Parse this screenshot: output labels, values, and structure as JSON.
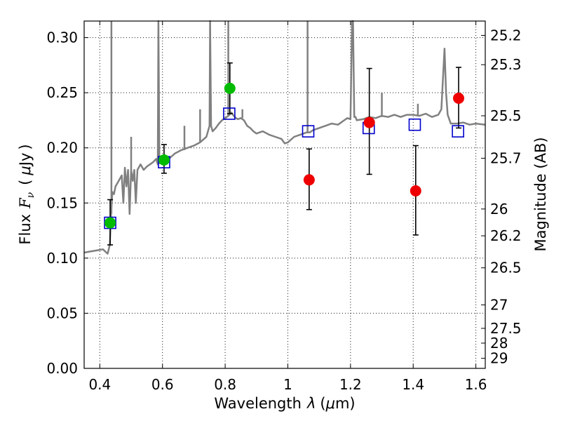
{
  "chart_data": {
    "type": "scatter",
    "x_label": "Wavelength",
    "x_symbol": "λ",
    "x_unit_prefix": "μ",
    "x_unit": "m",
    "y_label": "Flux",
    "y_symbol": "F",
    "y_symbol_sub": "ν",
    "y_unit_prefix": "μ",
    "y_unit": "Jy",
    "y2_label": "Magnitude (AB)",
    "xlim": [
      0.35,
      1.63
    ],
    "ylim": [
      0.0,
      0.315
    ],
    "x_ticks": [
      0.4,
      0.6,
      0.8,
      1.0,
      1.2,
      1.4,
      1.6
    ],
    "x_tick_labels": [
      "0.4",
      "0.6",
      "0.8",
      "1",
      "1.2",
      "1.4",
      "1.6"
    ],
    "y_ticks": [
      0.0,
      0.05,
      0.1,
      0.15,
      0.2,
      0.25,
      0.3
    ],
    "y_tick_labels": [
      "0.00",
      "0.05",
      "0.10",
      "0.15",
      "0.20",
      "0.25",
      "0.30"
    ],
    "y2_ticks": [
      {
        "label": "25.2",
        "mag": 25.2
      },
      {
        "label": "25.3",
        "mag": 25.3
      },
      {
        "label": "25.5",
        "mag": 25.5
      },
      {
        "label": "25.7",
        "mag": 25.7
      },
      {
        "label": "26",
        "mag": 26.0
      },
      {
        "label": "26.2",
        "mag": 26.2
      },
      {
        "label": "26.5",
        "mag": 26.5
      },
      {
        "label": "27",
        "mag": 27.0
      },
      {
        "label": "27.5",
        "mag": 27.5
      },
      {
        "label": "28",
        "mag": 28.0
      },
      {
        "label": "29",
        "mag": 29.0
      }
    ],
    "grid": true,
    "colors": {
      "template": "#808080",
      "green": "#00bb00",
      "red": "#ee0000",
      "square": "#0000cc",
      "errorbar": "#000000"
    },
    "template_spectrum": {
      "x": [
        0.35,
        0.37,
        0.39,
        0.41,
        0.425,
        0.432,
        0.436,
        0.44,
        0.445,
        0.45,
        0.46,
        0.47,
        0.475,
        0.48,
        0.485,
        0.49,
        0.495,
        0.5,
        0.505,
        0.51,
        0.515,
        0.52,
        0.53,
        0.54,
        0.55,
        0.56,
        0.57,
        0.58,
        0.585,
        0.587,
        0.59,
        0.595,
        0.6,
        0.62,
        0.64,
        0.66,
        0.68,
        0.7,
        0.72,
        0.74,
        0.75,
        0.752,
        0.755,
        0.76,
        0.77,
        0.78,
        0.79,
        0.8,
        0.81,
        0.82,
        0.83,
        0.84,
        0.85,
        0.86,
        0.87,
        0.88,
        0.89,
        0.9,
        0.92,
        0.94,
        0.96,
        0.98,
        0.99,
        1.0,
        1.02,
        1.04,
        1.06,
        1.07,
        1.08,
        1.1,
        1.12,
        1.14,
        1.16,
        1.18,
        1.19,
        1.2,
        1.205,
        1.208,
        1.212,
        1.216,
        1.22,
        1.24,
        1.26,
        1.28,
        1.3,
        1.32,
        1.34,
        1.36,
        1.38,
        1.4,
        1.42,
        1.44,
        1.46,
        1.48,
        1.49,
        1.5,
        1.505,
        1.51,
        1.52,
        1.54,
        1.56,
        1.58,
        1.6,
        1.63
      ],
      "y": [
        0.105,
        0.106,
        0.107,
        0.108,
        0.104,
        0.112,
        0.14,
        0.16,
        0.158,
        0.165,
        0.17,
        0.175,
        0.15,
        0.182,
        0.165,
        0.18,
        0.14,
        0.18,
        0.17,
        0.18,
        0.15,
        0.18,
        0.185,
        0.18,
        0.183,
        0.185,
        0.187,
        0.19,
        0.185,
        0.315,
        0.186,
        0.188,
        0.189,
        0.19,
        0.195,
        0.198,
        0.2,
        0.202,
        0.205,
        0.21,
        0.22,
        0.315,
        0.22,
        0.215,
        0.218,
        0.222,
        0.225,
        0.227,
        0.229,
        0.232,
        0.228,
        0.226,
        0.227,
        0.225,
        0.22,
        0.218,
        0.215,
        0.213,
        0.215,
        0.212,
        0.21,
        0.208,
        0.204,
        0.205,
        0.21,
        0.212,
        0.214,
        0.214,
        0.216,
        0.218,
        0.22,
        0.222,
        0.221,
        0.225,
        0.227,
        0.226,
        0.315,
        0.315,
        0.228,
        0.228,
        0.225,
        0.226,
        0.228,
        0.227,
        0.229,
        0.228,
        0.23,
        0.228,
        0.23,
        0.23,
        0.229,
        0.231,
        0.228,
        0.23,
        0.235,
        0.29,
        0.25,
        0.23,
        0.222,
        0.222,
        0.223,
        0.221,
        0.222,
        0.221
      ]
    },
    "template_spikes": [
      {
        "x": 0.437,
        "y_from": 0.14,
        "y_to": 0.315
      },
      {
        "x": 0.5,
        "y_from": 0.18,
        "y_to": 0.21
      },
      {
        "x": 0.67,
        "y_from": 0.198,
        "y_to": 0.22
      },
      {
        "x": 0.72,
        "y_from": 0.205,
        "y_to": 0.235
      },
      {
        "x": 0.81,
        "y_from": 0.229,
        "y_to": 0.315
      },
      {
        "x": 0.855,
        "y_from": 0.227,
        "y_to": 0.235
      },
      {
        "x": 1.063,
        "y_from": 0.214,
        "y_to": 0.315
      },
      {
        "x": 1.3,
        "y_from": 0.228,
        "y_to": 0.25
      },
      {
        "x": 1.415,
        "y_from": 0.229,
        "y_to": 0.24
      }
    ],
    "green_points": [
      {
        "x": 0.433,
        "y": 0.132,
        "yerr_low": 0.112,
        "yerr_high": 0.153
      },
      {
        "x": 0.605,
        "y": 0.189,
        "yerr_low": 0.177,
        "yerr_high": 0.203
      },
      {
        "x": 0.815,
        "y": 0.254,
        "yerr_low": 0.231,
        "yerr_high": 0.277
      }
    ],
    "red_points": [
      {
        "x": 1.068,
        "y": 0.171,
        "yerr_low": 0.144,
        "yerr_high": 0.199
      },
      {
        "x": 1.26,
        "y": 0.223,
        "yerr_low": 0.176,
        "yerr_high": 0.272
      },
      {
        "x": 1.408,
        "y": 0.161,
        "yerr_low": 0.121,
        "yerr_high": 0.202
      },
      {
        "x": 1.545,
        "y": 0.245,
        "yerr_low": 0.218,
        "yerr_high": 0.273
      }
    ],
    "square_points": [
      {
        "x": 0.433,
        "y": 0.132
      },
      {
        "x": 0.605,
        "y": 0.187
      },
      {
        "x": 0.813,
        "y": 0.231
      },
      {
        "x": 1.065,
        "y": 0.215
      },
      {
        "x": 1.258,
        "y": 0.218
      },
      {
        "x": 1.405,
        "y": 0.221
      },
      {
        "x": 1.543,
        "y": 0.215
      }
    ]
  }
}
